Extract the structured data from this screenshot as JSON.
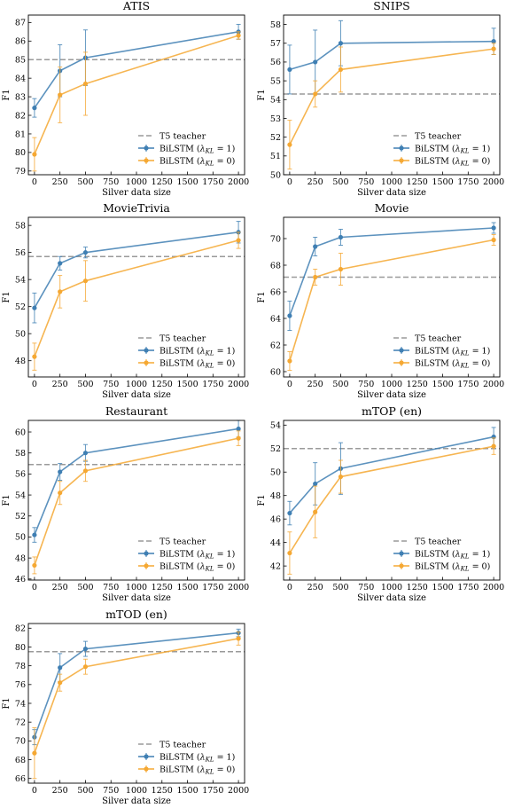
{
  "chart_data": [
    {
      "type": "line",
      "title": "ATIS",
      "xlabel": "Silver data size",
      "ylabel": "F1",
      "xlim": [
        -60,
        2060
      ],
      "ylim": [
        78.8,
        87.4
      ],
      "xticks": [
        0,
        250,
        500,
        750,
        1000,
        1250,
        1500,
        1750,
        2000
      ],
      "yticks": [
        79,
        80,
        81,
        82,
        83,
        84,
        85,
        86,
        87
      ],
      "x": [
        0,
        250,
        500,
        2000
      ],
      "reference": {
        "name": "T5 teacher",
        "value": 85.0
      },
      "series": [
        {
          "name": "BiLSTM (λ_KL = 1)",
          "legend_name": "BiLSTM (",
          "legend_suffix": " = 1)",
          "values": [
            82.4,
            84.4,
            85.1,
            86.5
          ],
          "err": [
            0.5,
            1.4,
            1.5,
            0.4
          ],
          "color": "#3f7fb3"
        },
        {
          "name": "BiLSTM (λ_KL = 0)",
          "legend_name": "BiLSTM (",
          "legend_suffix": " = 0)",
          "values": [
            79.9,
            83.1,
            83.7,
            86.3
          ],
          "err": [
            0.9,
            1.5,
            1.7,
            0.2
          ],
          "color": "#f5a833"
        }
      ],
      "legend": "lower-right"
    },
    {
      "type": "line",
      "title": "SNIPS",
      "xlabel": "Silver data size",
      "ylabel": "F1",
      "xlim": [
        -60,
        2060
      ],
      "ylim": [
        50.0,
        58.5
      ],
      "xticks": [
        0,
        250,
        500,
        750,
        1000,
        1250,
        1500,
        1750,
        2000
      ],
      "yticks": [
        50,
        51,
        52,
        53,
        54,
        55,
        56,
        57,
        58
      ],
      "x": [
        0,
        250,
        500,
        2000
      ],
      "reference": {
        "name": "T5 teacher",
        "value": 54.3
      },
      "series": [
        {
          "name": "BiLSTM (λ_KL = 1)",
          "legend_name": "BiLSTM (",
          "legend_suffix": " = 1)",
          "values": [
            55.6,
            56.0,
            57.0,
            57.1
          ],
          "err": [
            1.3,
            1.7,
            1.2,
            0.7
          ],
          "color": "#3f7fb3"
        },
        {
          "name": "BiLSTM (λ_KL = 0)",
          "legend_name": "BiLSTM (",
          "legend_suffix": " = 0)",
          "values": [
            51.6,
            54.3,
            55.6,
            56.7
          ],
          "err": [
            1.3,
            0.7,
            1.2,
            0.3
          ],
          "color": "#f5a833"
        }
      ],
      "legend": "lower-right"
    },
    {
      "type": "line",
      "title": "MovieTrivia",
      "xlabel": "Silver data size",
      "ylabel": "F1",
      "xlim": [
        -60,
        2060
      ],
      "ylim": [
        46.8,
        58.6
      ],
      "xticks": [
        0,
        250,
        500,
        750,
        1000,
        1250,
        1500,
        1750,
        2000
      ],
      "yticks": [
        48,
        50,
        52,
        54,
        56,
        58
      ],
      "x": [
        0,
        250,
        500,
        2000
      ],
      "reference": {
        "name": "T5 teacher",
        "value": 55.7
      },
      "series": [
        {
          "name": "BiLSTM (λ_KL = 1)",
          "legend_name": "BiLSTM (",
          "legend_suffix": " = 1)",
          "values": [
            51.9,
            55.2,
            56.0,
            57.5
          ],
          "err": [
            1.1,
            0.5,
            0.4,
            0.8
          ],
          "color": "#3f7fb3"
        },
        {
          "name": "BiLSTM (λ_KL = 0)",
          "legend_name": "BiLSTM (",
          "legend_suffix": " = 0)",
          "values": [
            48.3,
            53.1,
            53.9,
            56.9
          ],
          "err": [
            1.0,
            1.2,
            1.5,
            0.6
          ],
          "color": "#f5a833"
        }
      ],
      "legend": "lower-right"
    },
    {
      "type": "line",
      "title": "Movie",
      "xlabel": "Silver data size",
      "ylabel": "F1",
      "xlim": [
        -60,
        2060
      ],
      "ylim": [
        59.6,
        71.6
      ],
      "xticks": [
        0,
        250,
        500,
        750,
        1000,
        1250,
        1500,
        1750,
        2000
      ],
      "yticks": [
        60,
        62,
        64,
        66,
        68,
        70
      ],
      "x": [
        0,
        250,
        500,
        2000
      ],
      "reference": {
        "name": "T5 teacher",
        "value": 67.1
      },
      "series": [
        {
          "name": "BiLSTM (λ_KL = 1)",
          "legend_name": "BiLSTM (",
          "legend_suffix": " = 1)",
          "values": [
            64.2,
            69.4,
            70.1,
            70.8
          ],
          "err": [
            1.1,
            0.7,
            0.6,
            0.4
          ],
          "color": "#3f7fb3"
        },
        {
          "name": "BiLSTM (λ_KL = 0)",
          "legend_name": "BiLSTM (",
          "legend_suffix": " = 0)",
          "values": [
            60.8,
            67.1,
            67.7,
            69.9
          ],
          "err": [
            0.7,
            0.6,
            1.2,
            0.4
          ],
          "color": "#f5a833"
        }
      ],
      "legend": "lower-right"
    },
    {
      "type": "line",
      "title": "Restaurant",
      "xlabel": "Silver data size",
      "ylabel": "F1",
      "xlim": [
        -60,
        2060
      ],
      "ylim": [
        45.9,
        61.1
      ],
      "xticks": [
        0,
        250,
        500,
        750,
        1000,
        1250,
        1500,
        1750,
        2000
      ],
      "yticks": [
        46,
        48,
        50,
        52,
        54,
        56,
        58,
        60
      ],
      "x": [
        0,
        250,
        500,
        2000
      ],
      "reference": {
        "name": "T5 teacher",
        "value": 56.9
      },
      "series": [
        {
          "name": "BiLSTM (λ_KL = 1)",
          "legend_name": "BiLSTM (",
          "legend_suffix": " = 1)",
          "values": [
            50.2,
            56.2,
            58.0,
            60.3
          ],
          "err": [
            0.7,
            0.8,
            0.8,
            0.8
          ],
          "color": "#3f7fb3"
        },
        {
          "name": "BiLSTM (λ_KL = 0)",
          "legend_name": "BiLSTM (",
          "legend_suffix": " = 0)",
          "values": [
            47.3,
            54.2,
            56.3,
            59.4
          ],
          "err": [
            0.8,
            1.1,
            1.0,
            0.7
          ],
          "color": "#f5a833"
        }
      ],
      "legend": "lower-right"
    },
    {
      "type": "line",
      "title": "mTOP (en)",
      "xlabel": "Silver data size",
      "ylabel": "F1",
      "xlim": [
        -60,
        2060
      ],
      "ylim": [
        40.8,
        54.4
      ],
      "xticks": [
        0,
        250,
        500,
        750,
        1000,
        1250,
        1500,
        1750,
        2000
      ],
      "yticks": [
        42,
        44,
        46,
        48,
        50,
        52,
        54
      ],
      "x": [
        0,
        250,
        500,
        2000
      ],
      "reference": {
        "name": "T5 teacher",
        "value": 52.0
      },
      "series": [
        {
          "name": "BiLSTM (λ_KL = 1)",
          "legend_name": "BiLSTM (",
          "legend_suffix": " = 1)",
          "values": [
            46.5,
            49.0,
            50.3,
            53.0
          ],
          "err": [
            1.0,
            1.8,
            2.2,
            0.8
          ],
          "color": "#3f7fb3"
        },
        {
          "name": "BiLSTM (λ_KL = 0)",
          "legend_name": "BiLSTM (",
          "legend_suffix": " = 0)",
          "values": [
            43.1,
            46.6,
            49.6,
            52.2
          ],
          "err": [
            1.8,
            2.2,
            1.4,
            0.7
          ],
          "color": "#f5a833"
        }
      ],
      "legend": "lower-right"
    },
    {
      "type": "line",
      "title": "mTOD (en)",
      "xlabel": "Silver data size",
      "ylabel": "F1",
      "xlim": [
        -60,
        2060
      ],
      "ylim": [
        65.5,
        82.5
      ],
      "xticks": [
        0,
        250,
        500,
        750,
        1000,
        1250,
        1500,
        1750,
        2000
      ],
      "yticks": [
        66,
        68,
        70,
        72,
        74,
        76,
        78,
        80,
        82
      ],
      "x": [
        0,
        250,
        500,
        2000
      ],
      "reference": {
        "name": "T5 teacher",
        "value": 79.5
      },
      "series": [
        {
          "name": "BiLSTM (λ_KL = 1)",
          "legend_name": "BiLSTM (",
          "legend_suffix": " = 1)",
          "values": [
            70.4,
            77.8,
            79.8,
            81.5
          ],
          "err": [
            0.8,
            1.5,
            0.8,
            0.4
          ],
          "color": "#3f7fb3"
        },
        {
          "name": "BiLSTM (λ_KL = 0)",
          "legend_name": "BiLSTM (",
          "legend_suffix": " = 0)",
          "values": [
            68.7,
            76.2,
            77.9,
            80.9
          ],
          "err": [
            2.7,
            0.9,
            0.8,
            0.7
          ],
          "color": "#f5a833"
        }
      ],
      "legend": "lower-right"
    }
  ],
  "style": {
    "reference_color": "#9a9a9a",
    "axis_color": "#000000"
  }
}
